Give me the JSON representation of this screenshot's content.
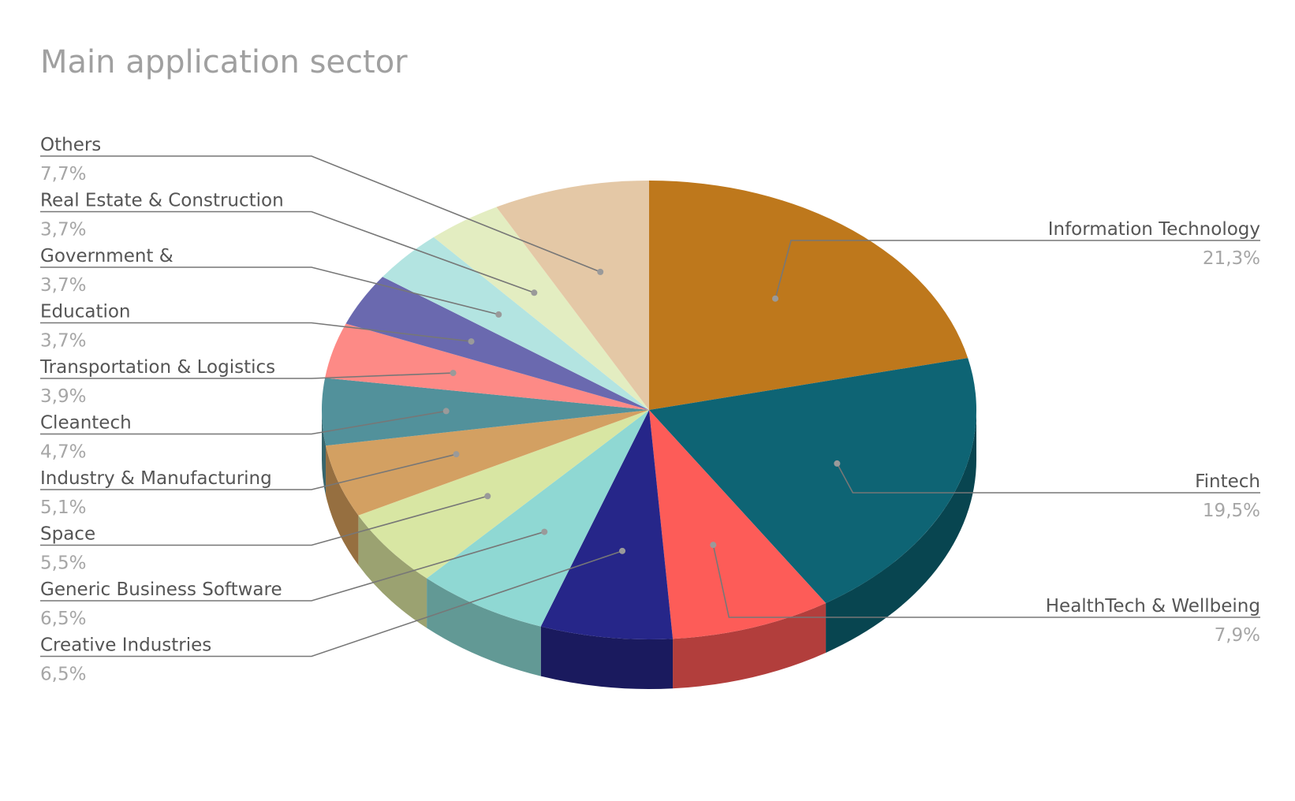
{
  "chart_data": {
    "type": "pie",
    "title": "Main application sector",
    "slices": [
      {
        "label": "Information Technology",
        "value": 21.3,
        "display": "21,3%",
        "color": "#BE781C",
        "side_color": "#8A5714",
        "side": "right"
      },
      {
        "label": "Fintech",
        "value": 19.5,
        "display": "19,5%",
        "color": "#0E6474",
        "side_color": "#084550",
        "side": "right"
      },
      {
        "label": "HealthTech & Wellbeing",
        "value": 7.9,
        "display": "7,9%",
        "color": "#FD5C58",
        "side_color": "#B23E3C",
        "side": "right"
      },
      {
        "label": "Creative Industries",
        "value": 6.5,
        "display": "6,5%",
        "color": "#262689",
        "side_color": "#1A1A5E",
        "side": "left"
      },
      {
        "label": "Generic Business Software",
        "value": 6.5,
        "display": "6,5%",
        "color": "#8FD8D3",
        "side_color": "#629995",
        "side": "left"
      },
      {
        "label": "Space",
        "value": 5.5,
        "display": "5,5%",
        "color": "#D8E6A3",
        "side_color": "#9BA271",
        "side": "left"
      },
      {
        "label": "Industry & Manufacturing",
        "value": 5.1,
        "display": "5,1%",
        "color": "#D3A062",
        "side_color": "#966F40",
        "side": "left"
      },
      {
        "label": "Cleantech",
        "value": 4.7,
        "display": "4,7%",
        "color": "#52919B",
        "side_color": "#37656C",
        "side": "left"
      },
      {
        "label": "Transportation & Logistics",
        "value": 3.9,
        "display": "3,9%",
        "color": "#FD8A86",
        "side_color": "#B0605D",
        "side": "left"
      },
      {
        "label": "Education",
        "value": 3.7,
        "display": "3,7%",
        "color": "#6A69AF",
        "side_color": "#4A497A",
        "side": "left"
      },
      {
        "label": "Government &",
        "value": 3.7,
        "display": "3,7%",
        "color": "#B3E4E1",
        "side_color": "#7DA09D",
        "side": "left"
      },
      {
        "label": "Real Estate & Construction",
        "value": 3.7,
        "display": "3,7%",
        "color": "#E3EDC1",
        "side_color": "#A0A787",
        "side": "left"
      },
      {
        "label": "Others",
        "value": 7.7,
        "display": "7,7%",
        "color": "#E4C8A6",
        "side_color": "#A08C74",
        "side": "left"
      }
    ]
  }
}
